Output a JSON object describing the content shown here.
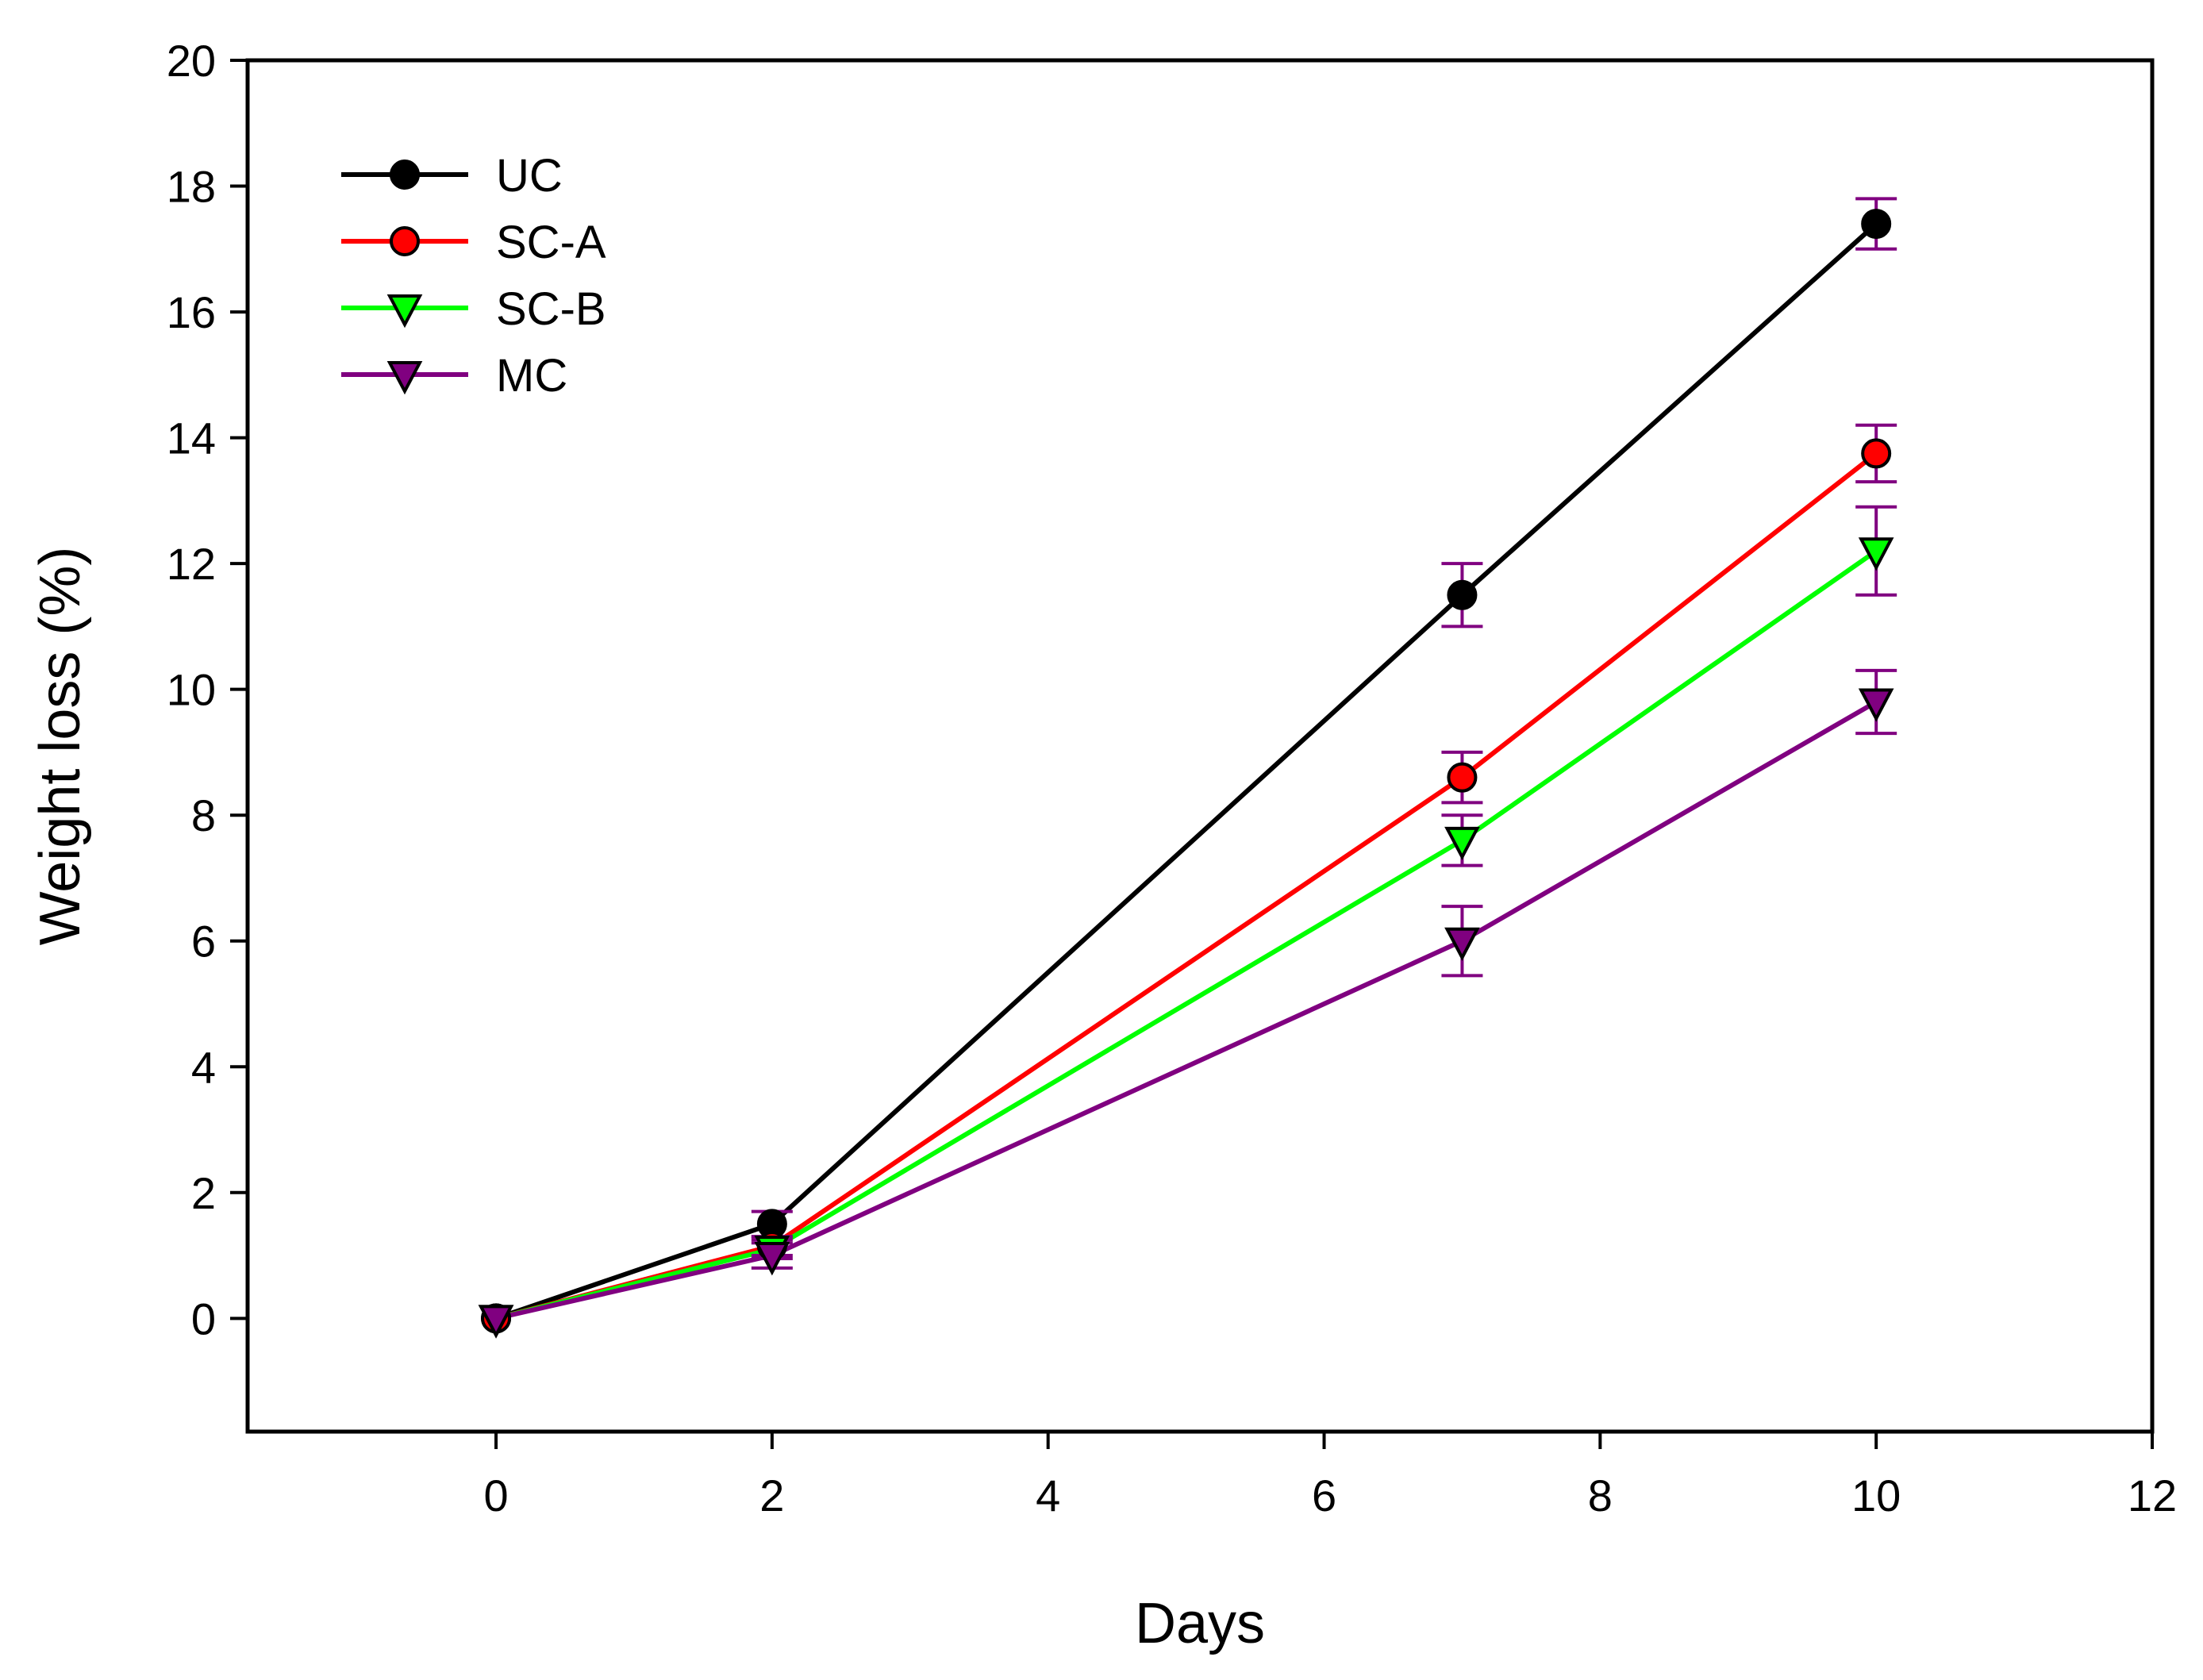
{
  "chart_data": {
    "type": "line",
    "title": "",
    "xlabel": "Days",
    "ylabel": "Weight loss (%)",
    "xlim": [
      -1.8,
      12
    ],
    "ylim": [
      -1.8,
      20
    ],
    "x_ticks": [
      0,
      2,
      4,
      6,
      8,
      10,
      12
    ],
    "y_ticks": [
      0,
      2,
      4,
      6,
      8,
      10,
      12,
      14,
      16,
      18,
      20
    ],
    "grid": false,
    "legend_position": "top-left",
    "error_bar_color": "#800080",
    "series": [
      {
        "name": "UC",
        "color": "#000000",
        "marker_fill": "#000000",
        "marker": "circle",
        "x": [
          0,
          2,
          7,
          10
        ],
        "y": [
          0,
          1.5,
          11.5,
          17.4
        ],
        "error": [
          0.05,
          0.2,
          0.5,
          0.4
        ]
      },
      {
        "name": "SC-A",
        "color": "#ff0000",
        "marker_fill": "#ff0000",
        "marker": "circle",
        "x": [
          0,
          2,
          7,
          10
        ],
        "y": [
          0,
          1.15,
          8.6,
          13.75
        ],
        "error": [
          0.05,
          0.15,
          0.4,
          0.45
        ]
      },
      {
        "name": "SC-B",
        "color": "#00ff00",
        "marker_fill": "#00ff00",
        "marker": "triangle-down",
        "x": [
          0,
          2,
          7,
          10
        ],
        "y": [
          0,
          1.1,
          7.6,
          12.2
        ],
        "error": [
          0.05,
          0.15,
          0.4,
          0.7
        ]
      },
      {
        "name": "MC",
        "color": "#800080",
        "marker_fill": "#800080",
        "marker": "triangle-down",
        "x": [
          0,
          2,
          7,
          10
        ],
        "y": [
          0,
          1.0,
          6.0,
          9.8
        ],
        "error": [
          0.05,
          0.2,
          0.55,
          0.5
        ]
      }
    ]
  }
}
